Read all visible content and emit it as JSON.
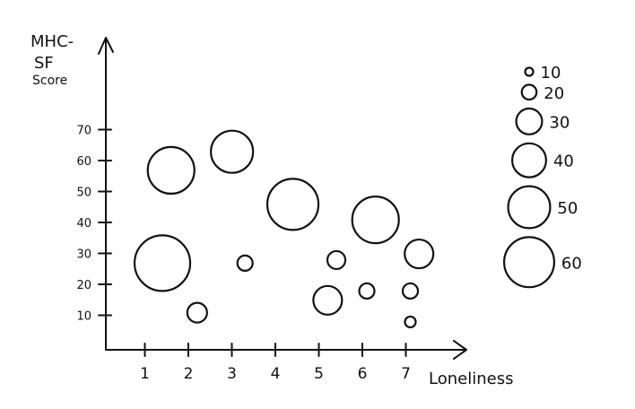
{
  "chart_data": {
    "type": "scatter",
    "subtype": "bubble",
    "title": "",
    "xlabel": "Loneliness",
    "ylabel_lines": [
      "MHC-",
      "SF",
      "Score"
    ],
    "x_ticks": [
      "1",
      "2",
      "3",
      "4",
      "5",
      "6",
      "7"
    ],
    "y_ticks": [
      "10",
      "20",
      "30",
      "40",
      "50",
      "60",
      "70"
    ],
    "xlim": [
      0,
      8.3
    ],
    "ylim": [
      0,
      70
    ],
    "grid": false,
    "legend_position": "right",
    "legend_title": "",
    "legend_sizes": [
      10,
      20,
      30,
      40,
      50,
      60
    ],
    "legend_labels": [
      "10",
      "20",
      "30",
      "40",
      "50",
      "60"
    ],
    "points": [
      {
        "x": 1.5,
        "y": 58,
        "size": 50
      },
      {
        "x": 1.3,
        "y": 28,
        "size": 60
      },
      {
        "x": 2.9,
        "y": 64,
        "size": 45
      },
      {
        "x": 2.1,
        "y": 12,
        "size": 20
      },
      {
        "x": 3.2,
        "y": 28,
        "size": 15
      },
      {
        "x": 4.3,
        "y": 47,
        "size": 55
      },
      {
        "x": 5.3,
        "y": 29,
        "size": 18
      },
      {
        "x": 5.1,
        "y": 16,
        "size": 30
      },
      {
        "x": 6.2,
        "y": 42,
        "size": 50
      },
      {
        "x": 6.0,
        "y": 19,
        "size": 15
      },
      {
        "x": 7.2,
        "y": 31,
        "size": 30
      },
      {
        "x": 7.0,
        "y": 19,
        "size": 15
      },
      {
        "x": 7.0,
        "y": 9,
        "size": 10
      }
    ]
  }
}
